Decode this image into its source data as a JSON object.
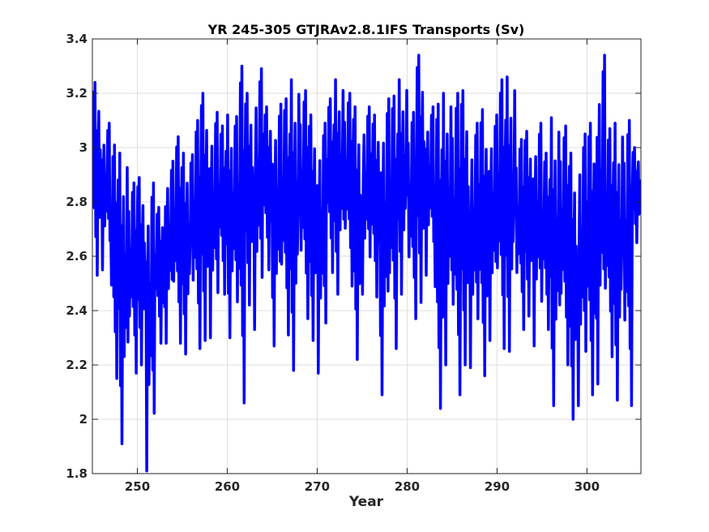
{
  "chart_data": {
    "type": "line",
    "title": "YR 245-305 GTJRAv2.8.1IFS Transports (Sv)",
    "xlabel": "Year",
    "ylabel": "",
    "xlim": [
      245,
      306
    ],
    "ylim": [
      1.8,
      3.4
    ],
    "xticks": [
      250,
      260,
      270,
      280,
      290,
      300
    ],
    "yticks": [
      1.8,
      2.0,
      2.2,
      2.4,
      2.6,
      2.8,
      3.0,
      3.2,
      3.4
    ],
    "xtick_labels": [
      "250",
      "260",
      "270",
      "280",
      "290",
      "300"
    ],
    "ytick_labels": [
      "1.8",
      "2",
      "2.2",
      "2.4",
      "2.6",
      "2.8",
      "3",
      "3.2",
      "3.4"
    ],
    "grid": true,
    "series": [
      {
        "color": "#0000ff",
        "monthly_cycle_note": "",
        "annual_max": [
          3.24,
          3.09,
          3.01,
          2.98,
          2.87,
          2.89,
          2.87,
          2.78,
          2.95,
          3.04,
          2.98,
          3.1,
          3.2,
          3.13,
          3.08,
          3.12,
          3.3,
          3.2,
          3.29,
          3.15,
          3.16,
          3.18,
          3.25,
          3.21,
          3.12,
          3.09,
          3.18,
          3.25,
          3.2,
          3.15,
          3.15,
          3.12,
          3.18,
          3.19,
          3.25,
          3.13,
          3.34,
          3.15,
          3.16,
          3.2,
          3.2,
          3.21,
          3.09,
          3.14,
          3.12,
          3.25,
          3.26,
          3.03,
          3.06,
          3.09,
          2.98,
          3.11,
          3.08,
          2.98,
          3.05,
          3.09,
          3.34,
          3.07,
          3.09,
          3.1,
          3.0
        ],
        "annual_min": [
          2.53,
          2.55,
          2.15,
          1.91,
          2.17,
          2.2,
          1.81,
          2.28,
          2.28,
          2.28,
          2.24,
          2.26,
          2.29,
          2.3,
          2.46,
          2.3,
          2.06,
          2.42,
          2.33,
          2.55,
          2.27,
          2.31,
          2.18,
          2.37,
          2.29,
          2.17,
          2.54,
          2.46,
          2.49,
          2.22,
          2.46,
          2.45,
          2.09,
          2.26,
          2.46,
          2.37,
          2.43,
          2.53,
          2.04,
          2.2,
          2.09,
          2.2,
          2.19,
          2.16,
          2.29,
          2.26,
          2.25,
          2.33,
          2.38,
          2.27,
          2.33,
          2.05,
          2.2,
          2.0,
          2.05,
          2.09,
          2.13,
          2.23,
          2.07,
          2.05,
          2.65
        ]
      }
    ]
  }
}
